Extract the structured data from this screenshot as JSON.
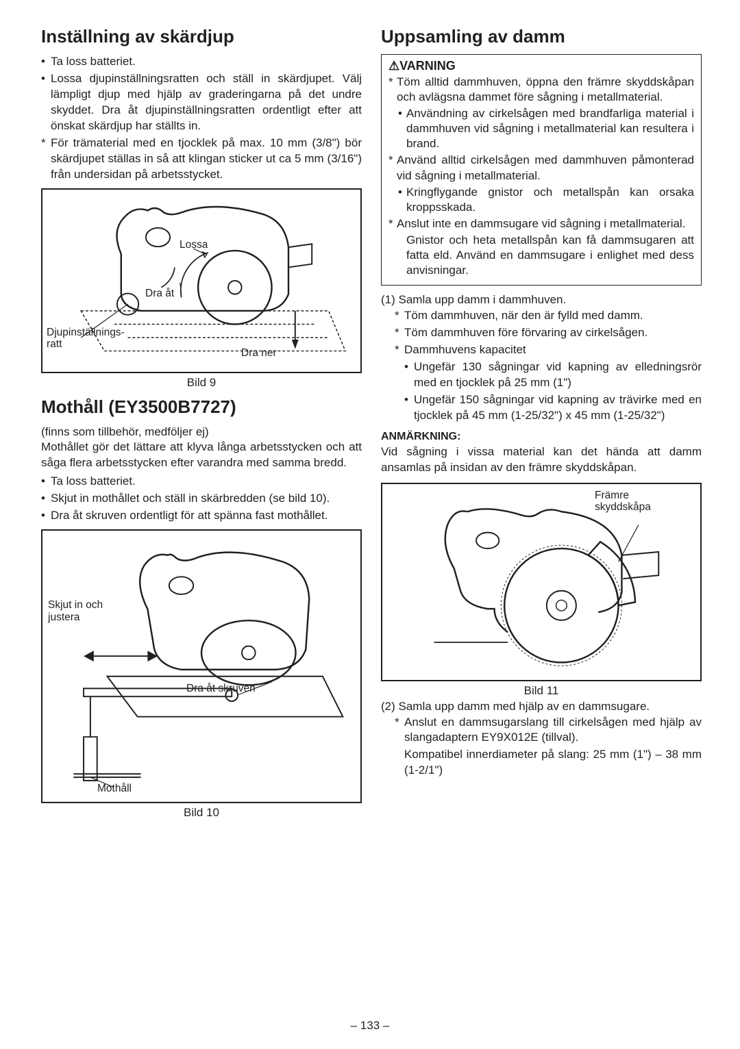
{
  "left": {
    "section1_title": "Inställning av skärdjup",
    "s1_items": [
      {
        "mark": "•",
        "text": "Ta loss batteriet."
      },
      {
        "mark": "•",
        "text": "Lossa djupinställningsratten och ställ in skärdjupet. Välj lämpligt djup med hjälp av graderingarna på det undre skyddet. Dra åt djupinställningsratten ordentligt efter att önskat skärdjup har ställts in."
      },
      {
        "mark": "*",
        "text": "För trämaterial med en tjocklek på max. 10 mm (3/8\") bör skärdjupet ställas in så att klingan sticker ut ca 5 mm (3/16\") från undersidan på arbetsstycket."
      }
    ],
    "fig9": {
      "caption": "Bild 9",
      "lbl_lossa": "Lossa",
      "lbl_draat": "Dra åt",
      "lbl_ratt": "Djupinställnings-\nratt",
      "lbl_draner": "Dra ner"
    },
    "section2_title": "Mothåll (EY3500B7727)",
    "s2_intro": "(finns som tillbehör, medföljer ej)",
    "s2_body": "Mothållet gör det lättare att klyva långa arbetsstycken och att såga flera arbetsstycken efter varandra med samma bredd.",
    "s2_items": [
      {
        "mark": "•",
        "text": "Ta loss batteriet."
      },
      {
        "mark": "•",
        "text": "Skjut in mothållet och ställ in skärbredden (se bild 10)."
      },
      {
        "mark": "•",
        "text": "Dra åt skruven ordentligt för att spänna fast mothållet."
      }
    ],
    "fig10": {
      "caption": "Bild 10",
      "lbl_skjut": "Skjut in och\njustera",
      "lbl_draskruv": "Dra åt skruven",
      "lbl_mothall": "Mothåll"
    }
  },
  "right": {
    "section_title": "Uppsamling av damm",
    "warning_title": "⚠VARNING",
    "warn_items": [
      {
        "mark": "*",
        "text": "Töm alltid dammhuven, öppna den främre skyddskåpan och avlägsna dammet före sågning i metallmaterial.",
        "indent": 0
      },
      {
        "mark": "•",
        "text": "Användning av cirkelsågen med brandfarliga material i dammhuven vid sågning i metallmaterial kan resultera i brand.",
        "indent": 1
      },
      {
        "mark": "*",
        "text": "Använd alltid cirkelsågen med dammhuven påmonterad vid sågning i metallmaterial.",
        "indent": 0
      },
      {
        "mark": "•",
        "text": "Kringflygande gnistor och metallspån kan orsaka kroppsskada.",
        "indent": 1
      },
      {
        "mark": "*",
        "text": "Anslut inte en dammsugare vid sågning i metallmaterial.",
        "indent": 0
      },
      {
        "mark": "",
        "text": "Gnistor och heta metallspån kan få dammsugaren att fatta eld. Använd en dammsugare i enlighet med dess anvisningar.",
        "indent": 1
      }
    ],
    "item1_head": "(1) Samla upp damm i dammhuven.",
    "item1_sub": [
      {
        "mark": "*",
        "text": "Töm dammhuven, när den är fylld med damm."
      },
      {
        "mark": "*",
        "text": "Töm dammhuven före förvaring av cirkelsågen."
      },
      {
        "mark": "*",
        "text": "Dammhuvens kapacitet"
      },
      {
        "mark": "•",
        "text": "Ungefär 130 sågningar vid kapning av elledningsrör med en tjocklek på 25 mm (1\")",
        "indent": 1
      },
      {
        "mark": "•",
        "text": "Ungefär 150 sågningar vid kapning av trävirke med en tjocklek på 45 mm (1-25/32\") x 45 mm (1-25/32\")",
        "indent": 1
      }
    ],
    "note_head": "ANMÄRKNING:",
    "note_body": "Vid sågning i vissa material kan det hända att damm ansamlas på insidan av den främre skyddskåpan.",
    "fig11": {
      "caption": "Bild 11",
      "lbl_framre": "Främre\nskyddskåpa"
    },
    "item2_head": "(2) Samla upp damm med hjälp av en dammsugare.",
    "item2_sub": [
      {
        "mark": "*",
        "text": "Anslut en dammsugarslang till cirkelsågen med hjälp av slangadaptern EY9X012E (tillval)."
      },
      {
        "mark": "",
        "text": "Kompatibel innerdiameter på slang: 25 mm (1\") – 38 mm (1-2/1\")"
      }
    ]
  },
  "page_number": "– 133 –"
}
